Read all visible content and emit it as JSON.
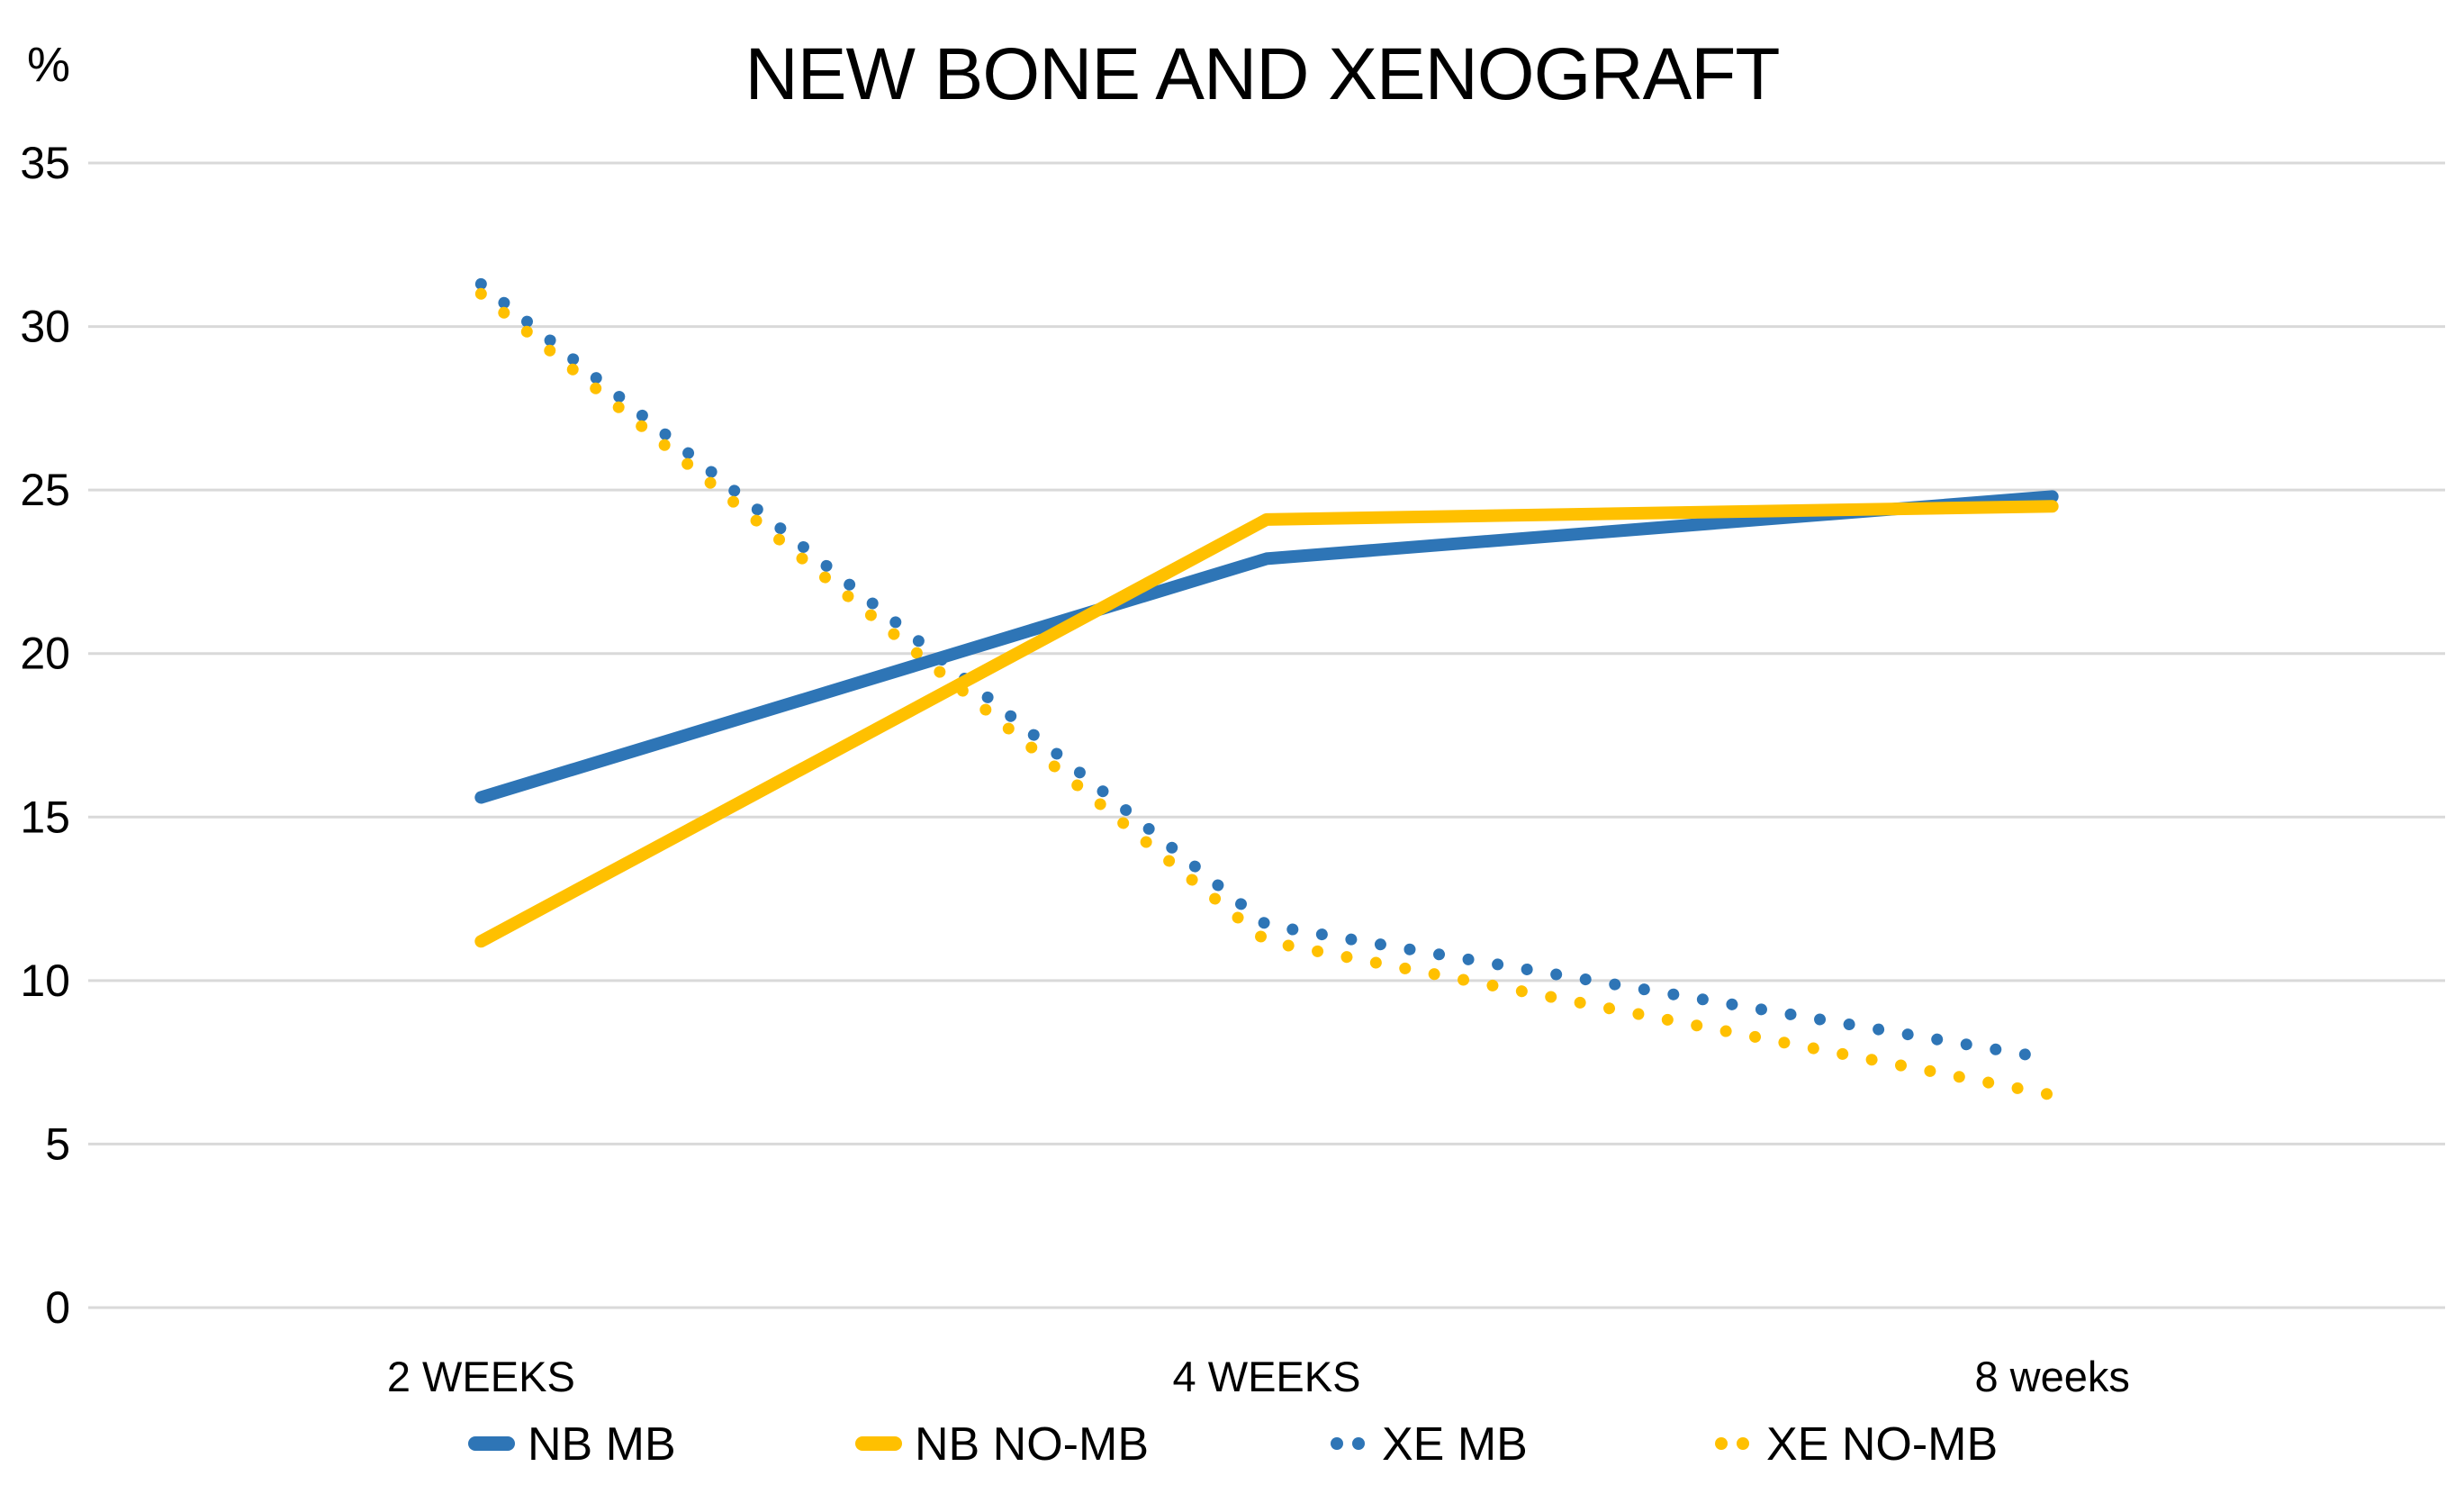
{
  "chart_data": {
    "type": "line",
    "title": "NEW BONE AND XENOGRAFT",
    "ylabel": "%",
    "xlabel": "",
    "categories": [
      "2 WEEKS",
      "4 WEEKS",
      "8 weeks"
    ],
    "series": [
      {
        "name": "NB MB",
        "style": "solid",
        "color": "#2E75B6",
        "values": [
          15.6,
          22.9,
          24.8
        ]
      },
      {
        "name": "NB NO-MB",
        "style": "solid",
        "color": "#FFC000",
        "values": [
          11.2,
          24.1,
          24.5
        ]
      },
      {
        "name": "XE MB",
        "style": "dotted",
        "color": "#2E75B6",
        "values": [
          31.3,
          11.7,
          7.6
        ]
      },
      {
        "name": "XE NO-MB",
        "style": "dotted",
        "color": "#FFC000",
        "values": [
          31.0,
          11.2,
          6.5
        ]
      }
    ],
    "ylim": [
      0,
      35
    ],
    "ytick_step": 5,
    "yticks": [
      0,
      5,
      10,
      15,
      20,
      25,
      30,
      35
    ],
    "grid": "horizontal-only",
    "legend_position": "bottom",
    "gridline_color": "#D9D9D9",
    "text_color": "#000000",
    "background_color": "#FFFFFF"
  }
}
